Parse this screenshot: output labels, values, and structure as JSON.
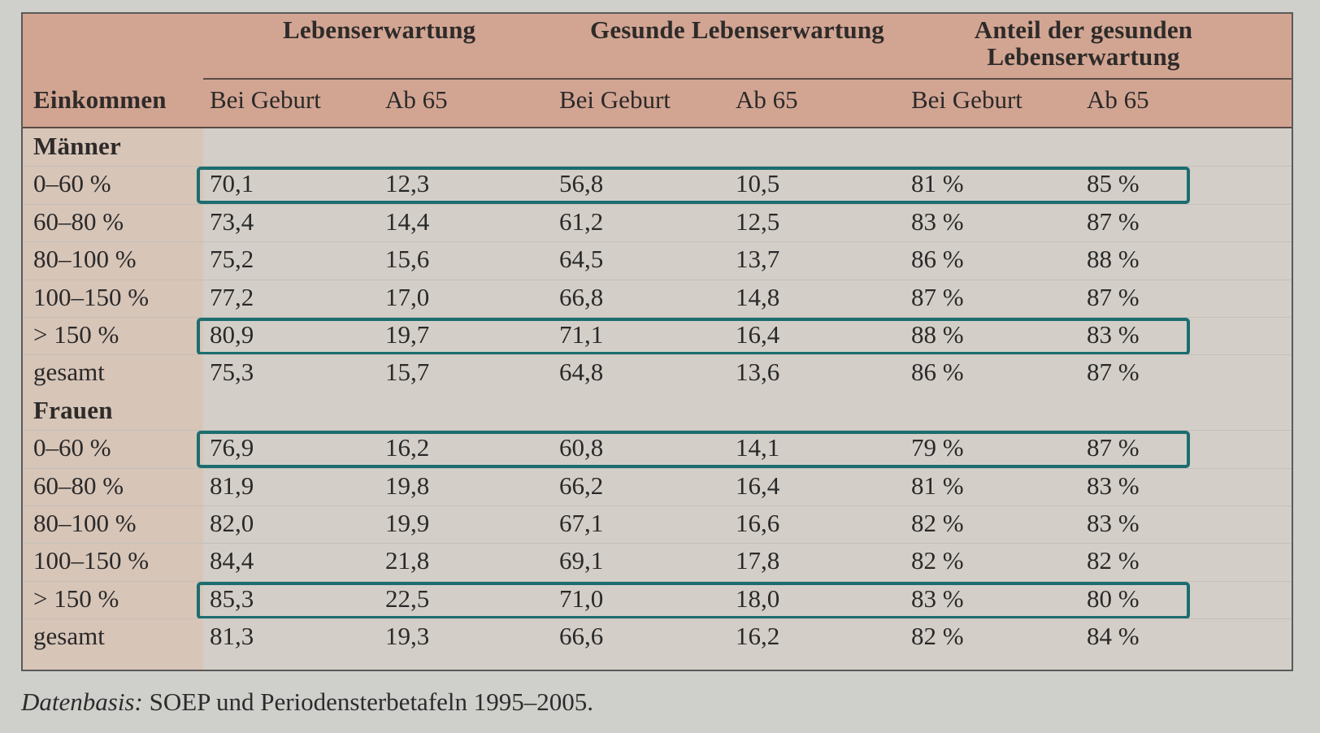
{
  "header": {
    "group1": "Lebenserwartung",
    "group2": "Gesunde Lebenserwartung",
    "group3_line1": "Anteil der gesunden",
    "group3_line2": "Lebenserwartung",
    "row_label": "Einkommen",
    "sub": [
      "Bei Geburt",
      "Ab 65",
      "Bei Geburt",
      "Ab 65",
      "Bei Geburt",
      "Ab 65"
    ]
  },
  "sections": [
    {
      "title": "Männer",
      "rows": [
        {
          "label": "0–60 %",
          "values": [
            "70,1",
            "12,3",
            "56,8",
            "10,5",
            "81 %",
            "85 %"
          ],
          "highlight": true
        },
        {
          "label": "60–80 %",
          "values": [
            "73,4",
            "14,4",
            "61,2",
            "12,5",
            "83 %",
            "87 %"
          ],
          "highlight": false
        },
        {
          "label": "80–100 %",
          "values": [
            "75,2",
            "15,6",
            "64,5",
            "13,7",
            "86 %",
            "88 %"
          ],
          "highlight": false
        },
        {
          "label": "100–150 %",
          "values": [
            "77,2",
            "17,0",
            "66,8",
            "14,8",
            "87 %",
            "87 %"
          ],
          "highlight": false
        },
        {
          "label": "> 150 %",
          "values": [
            "80,9",
            "19,7",
            "71,1",
            "16,4",
            "88 %",
            "83 %"
          ],
          "highlight": true
        },
        {
          "label": "gesamt",
          "values": [
            "75,3",
            "15,7",
            "64,8",
            "13,6",
            "86 %",
            "87 %"
          ],
          "highlight": false
        }
      ]
    },
    {
      "title": "Frauen",
      "rows": [
        {
          "label": "0–60 %",
          "values": [
            "76,9",
            "16,2",
            "60,8",
            "14,1",
            "79 %",
            "87 %"
          ],
          "highlight": true
        },
        {
          "label": "60–80 %",
          "values": [
            "81,9",
            "19,8",
            "66,2",
            "16,4",
            "81 %",
            "83 %"
          ],
          "highlight": false
        },
        {
          "label": "80–100 %",
          "values": [
            "82,0",
            "19,9",
            "67,1",
            "16,6",
            "82 %",
            "83 %"
          ],
          "highlight": false
        },
        {
          "label": "100–150 %",
          "values": [
            "84,4",
            "21,8",
            "69,1",
            "17,8",
            "82 %",
            "82 %"
          ],
          "highlight": false
        },
        {
          "label": "> 150 %",
          "values": [
            "85,3",
            "22,5",
            "71,0",
            "18,0",
            "83 %",
            "80 %"
          ],
          "highlight": true
        },
        {
          "label": "gesamt",
          "values": [
            "81,3",
            "19,3",
            "66,6",
            "16,2",
            "82 %",
            "84 %"
          ],
          "highlight": false
        }
      ]
    }
  ],
  "source": {
    "label": "Datenbasis:",
    "text": "SOEP und Periodensterbetafeln 1995–2005."
  },
  "colors": {
    "header_band": "#d2a593",
    "highlight_border": "#1c6d6f",
    "background": "#cfd0cc"
  }
}
